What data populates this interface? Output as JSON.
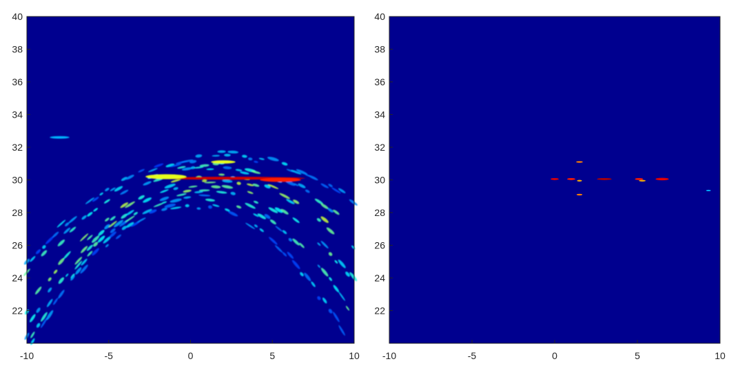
{
  "colors": {
    "background": "#00008f",
    "axis": "#262626",
    "colormap": [
      "#00008f",
      "#0000ff",
      "#0080ff",
      "#00ffff",
      "#80ff80",
      "#ffff00",
      "#ff8000",
      "#ff0000",
      "#800000"
    ]
  },
  "chart_data": [
    {
      "type": "heatmap",
      "colormap": "jet",
      "xlim": [
        -10,
        10
      ],
      "ylim": [
        20,
        40
      ],
      "xticks": [
        -10,
        -5,
        0,
        5,
        10
      ],
      "xtick_labels": [
        "-10",
        "-5",
        "0",
        "5",
        "10"
      ],
      "yticks": [
        22,
        24,
        26,
        28,
        30,
        32,
        34,
        36,
        38,
        40
      ],
      "ytick_labels": [
        "22",
        "24",
        "26",
        "28",
        "30",
        "32",
        "34",
        "36",
        "38",
        "40"
      ],
      "hotspots": [
        {
          "x": 2.5,
          "y": 30.1,
          "w": 9.0,
          "h": 0.18,
          "level": 0.92
        },
        {
          "x": 5.5,
          "y": 30.0,
          "w": 2.5,
          "h": 0.25,
          "level": 0.85
        },
        {
          "x": -1.5,
          "y": 30.2,
          "w": 2.5,
          "h": 0.3,
          "level": 0.6
        },
        {
          "x": 2.0,
          "y": 31.1,
          "w": 1.5,
          "h": 0.2,
          "level": 0.6
        },
        {
          "x": -8.0,
          "y": 32.6,
          "w": 1.2,
          "h": 0.15,
          "level": 0.3
        }
      ],
      "arcs": [
        {
          "peak_x": 1.5,
          "peak_y": 30.1,
          "curvature": 0.06,
          "level": 0.5
        },
        {
          "peak_x": 1.0,
          "peak_y": 29.5,
          "curvature": 0.07,
          "level": 0.45
        },
        {
          "peak_x": 1.5,
          "peak_y": 30.8,
          "curvature": 0.05,
          "level": 0.4
        },
        {
          "peak_x": 0.5,
          "peak_y": 29.0,
          "curvature": 0.08,
          "level": 0.4
        },
        {
          "peak_x": 2.0,
          "peak_y": 31.5,
          "curvature": 0.045,
          "level": 0.3
        },
        {
          "peak_x": 0.0,
          "peak_y": 28.5,
          "curvature": 0.09,
          "level": 0.3
        }
      ]
    },
    {
      "type": "heatmap",
      "colormap": "jet",
      "xlim": [
        -10,
        10
      ],
      "ylim": [
        20,
        40
      ],
      "xticks": [
        -10,
        -5,
        0,
        5,
        10
      ],
      "xtick_labels": [
        "-10",
        "-5",
        "0",
        "5",
        "10"
      ],
      "yticks": [
        22,
        24,
        26,
        28,
        30,
        32,
        34,
        36,
        38,
        40
      ],
      "ytick_labels": [
        "22",
        "24",
        "26",
        "28",
        "30",
        "32",
        "34",
        "36",
        "38",
        "40"
      ],
      "hotspots": [
        {
          "x": 0.0,
          "y": 30.05,
          "w": 0.5,
          "h": 0.12,
          "level": 0.9
        },
        {
          "x": 1.0,
          "y": 30.05,
          "w": 0.5,
          "h": 0.12,
          "level": 0.85
        },
        {
          "x": 1.5,
          "y": 29.95,
          "w": 0.3,
          "h": 0.1,
          "level": 0.7
        },
        {
          "x": 1.5,
          "y": 31.1,
          "w": 0.4,
          "h": 0.1,
          "level": 0.75
        },
        {
          "x": 1.5,
          "y": 29.1,
          "w": 0.35,
          "h": 0.1,
          "level": 0.75
        },
        {
          "x": 3.0,
          "y": 30.05,
          "w": 0.9,
          "h": 0.12,
          "level": 0.95
        },
        {
          "x": 5.1,
          "y": 30.05,
          "w": 0.5,
          "h": 0.12,
          "level": 0.85
        },
        {
          "x": 5.3,
          "y": 29.95,
          "w": 0.4,
          "h": 0.1,
          "level": 0.7
        },
        {
          "x": 6.5,
          "y": 30.05,
          "w": 0.8,
          "h": 0.15,
          "level": 0.9
        },
        {
          "x": 9.3,
          "y": 29.35,
          "w": 0.3,
          "h": 0.08,
          "level": 0.3
        }
      ]
    }
  ]
}
